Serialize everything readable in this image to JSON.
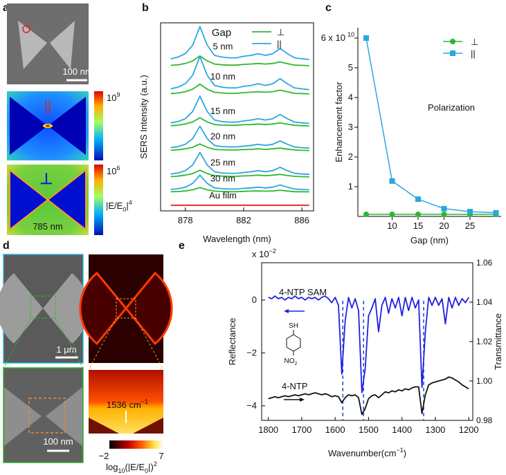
{
  "panel_a": {
    "label": "a",
    "scale_bar": "100 nm",
    "map1_symbol": "||",
    "map2_symbol": "⊥",
    "cbar1_base": "10",
    "cbar1_exp": "9",
    "cbar2_base": "10",
    "cbar2_exp": "6",
    "field": {
      "a": "|E/E",
      "b": "0",
      "c": "|",
      "d": "4"
    },
    "wavelength": "785 nm"
  },
  "panel_d": {
    "label": "d",
    "scale_bar_1": "1 μm",
    "scale_bar_2": "100 nm",
    "raman": {
      "text": "1536 cm",
      "sup": "−1"
    },
    "cbar_min": "−2",
    "cbar_max": "7",
    "cbar_label": {
      "a": "log",
      "b": "10",
      "c": "(|E/E",
      "d": "0",
      "e": "|)",
      "f": "2"
    }
  },
  "chart_data": [
    {
      "type": "line",
      "label": "b",
      "xlabel": "Wavelength (nm)",
      "ylabel": "SERS Intensity (a.u.)",
      "x": [
        877,
        877.5,
        878,
        878.5,
        879,
        879.5,
        880,
        880.5,
        881,
        881.5,
        882,
        882.5,
        883,
        883.5,
        884,
        884.5,
        885,
        885.5,
        886,
        886.5
      ],
      "xlim": [
        876.3,
        886.8
      ],
      "xticks": [
        878,
        882,
        886
      ],
      "ylim": [
        0,
        100
      ],
      "legend_title": "Gap",
      "legend": [
        {
          "name": "⊥",
          "color": "#2db82d"
        },
        {
          "name": "||",
          "color": "#2aa6e0"
        }
      ],
      "series": [
        {
          "color": "#2db82d",
          "values": [
            77.4,
            77.7,
            78.4,
            79.7,
            82.4,
            79.7,
            78.1,
            77.7,
            77.5,
            77.5,
            77.9,
            78.1,
            78.4,
            78.1,
            78.4,
            79.2,
            78.3,
            77.5,
            77.4,
            77.2
          ]
        },
        {
          "label": "5 nm",
          "color": "#2aa6e0",
          "values": [
            80.9,
            81.8,
            83.6,
            88.1,
            98,
            88.1,
            82.7,
            81.8,
            81.4,
            81.4,
            82.2,
            82.7,
            83.6,
            82.7,
            83.6,
            86.3,
            83.6,
            81.4,
            80.9,
            80.5
          ]
        },
        {
          "color": "#2db82d",
          "values": [
            62.4,
            62.7,
            63.4,
            64.7,
            67.4,
            64.7,
            63.1,
            62.7,
            62.5,
            62.5,
            62.9,
            63.1,
            63.4,
            63.1,
            63.4,
            64.2,
            63.3,
            62.5,
            62.4,
            62.2
          ]
        },
        {
          "label": "10 nm",
          "color": "#2aa6e0",
          "values": [
            64.9,
            65.8,
            67.6,
            72.1,
            82,
            72.1,
            66.7,
            65.8,
            65.4,
            65.4,
            66.2,
            66.7,
            67.6,
            66.7,
            67.6,
            70.3,
            67.6,
            65.4,
            64.9,
            64.5
          ]
        },
        {
          "color": "#2db82d",
          "values": [
            45.3,
            45.6,
            46.2,
            47.3,
            49.5,
            47.3,
            45.9,
            45.6,
            45.5,
            45.5,
            45.8,
            45.9,
            46.2,
            45.9,
            46.2,
            46.8,
            46.1,
            45.5,
            45.3,
            45.2
          ]
        },
        {
          "label": "15 nm",
          "color": "#2aa6e0",
          "values": [
            46.8,
            47.5,
            49,
            52.8,
            61,
            52.8,
            48.3,
            47.5,
            47.2,
            47.2,
            47.8,
            48.3,
            49,
            48.3,
            49,
            51.3,
            49,
            47.2,
            46.8,
            46.5
          ]
        },
        {
          "color": "#2db82d",
          "values": [
            32.2,
            32.5,
            33,
            33.8,
            35.6,
            33.8,
            32.7,
            32.5,
            32.4,
            32.4,
            32.6,
            32.7,
            33,
            32.7,
            33,
            33.4,
            32.8,
            32.4,
            32.2,
            32.1
          ]
        },
        {
          "label": "20 nm",
          "color": "#2aa6e0",
          "values": [
            33.6,
            34.2,
            35.4,
            38.4,
            45,
            38.4,
            34.8,
            34.2,
            34,
            34,
            34.4,
            34.8,
            35.4,
            34.8,
            35.4,
            37.2,
            35.4,
            34,
            33.6,
            33.4
          ]
        },
        {
          "color": "#2db82d",
          "values": [
            18.2,
            18.5,
            19,
            19.8,
            21.6,
            19.8,
            18.7,
            18.5,
            18.4,
            18.4,
            18.6,
            18.7,
            19,
            18.7,
            19,
            19.4,
            18.8,
            18.4,
            18.2,
            18.1
          ]
        },
        {
          "label": "25 nm",
          "color": "#2aa6e0",
          "values": [
            19.6,
            20.2,
            21.4,
            24.4,
            31,
            24.4,
            20.8,
            20.2,
            20,
            20,
            20.4,
            20.8,
            21.4,
            20.8,
            21.4,
            23.2,
            21.4,
            20,
            19.6,
            19.4
          ]
        },
        {
          "color": "#2db82d",
          "values": [
            10.2,
            10.3,
            10.6,
            11.2,
            12.4,
            11.2,
            10.5,
            10.3,
            10.2,
            10.2,
            10.4,
            10.5,
            10.6,
            10.5,
            10.6,
            11,
            10.6,
            10.2,
            10.2,
            10.1
          ]
        },
        {
          "label": "30 nm",
          "color": "#2aa6e0",
          "values": [
            11.4,
            11.8,
            12.6,
            14.6,
            19,
            14.6,
            12.2,
            11.8,
            11.6,
            11.6,
            12,
            12.2,
            12.6,
            12.2,
            12.6,
            13.8,
            12.6,
            11.6,
            11.4,
            11.2
          ]
        },
        {
          "label": "Au film",
          "color": "#e0201c",
          "values": [
            3,
            3,
            3,
            3,
            3,
            3,
            3,
            3,
            3,
            3,
            3,
            3,
            3,
            3,
            3,
            3,
            3,
            3,
            3,
            3
          ]
        }
      ]
    },
    {
      "type": "line",
      "label": "c",
      "xlabel": "Gap (nm)",
      "ylabel": "Enhancement factor",
      "annotation": "Polarization",
      "x": [
        5,
        10,
        15,
        20,
        25,
        30
      ],
      "xlim": [
        3.4,
        31
      ],
      "xticks": [
        10,
        15,
        20,
        25
      ],
      "ylim": [
        0,
        6.35
      ],
      "yticks": [
        1,
        2,
        3,
        4,
        5,
        {
          "value": 6,
          "label": "6 x 10"
        }
      ],
      "ytick_exponent": "10",
      "series": [
        {
          "name": "⊥",
          "color": "#2db82d",
          "marker": "circle",
          "values": [
            0.07,
            0.07,
            0.07,
            0.07,
            0.07,
            0.07
          ]
        },
        {
          "name": "||",
          "color": "#2aa6e0",
          "marker": "square",
          "values": [
            6.0,
            1.19,
            0.58,
            0.26,
            0.16,
            0.12
          ]
        }
      ]
    },
    {
      "type": "line",
      "label": "e",
      "xlabel": {
        "text": "Wavenumber(cm",
        "sup": "−1",
        "end": ")"
      },
      "ylabel": "Reflectance",
      "y2label": "Transmittance",
      "ymultiplier": "x 10",
      "ymultiplier_exp": "−2",
      "x": [
        1800,
        1790,
        1780,
        1770,
        1760,
        1750,
        1740,
        1730,
        1720,
        1710,
        1700,
        1690,
        1680,
        1670,
        1660,
        1650,
        1640,
        1630,
        1620,
        1610,
        1600,
        1590,
        1580,
        1570,
        1560,
        1550,
        1540,
        1530,
        1520,
        1510,
        1500,
        1490,
        1480,
        1470,
        1460,
        1450,
        1440,
        1430,
        1420,
        1410,
        1400,
        1390,
        1380,
        1370,
        1360,
        1350,
        1340,
        1330,
        1320,
        1310,
        1300,
        1290,
        1280,
        1270,
        1260,
        1250,
        1240,
        1230,
        1220,
        1210,
        1200
      ],
      "xlim": [
        1820,
        1188
      ],
      "xticks": [
        1800,
        1700,
        1600,
        1500,
        1400,
        1300,
        1200
      ],
      "ylim": [
        -4.55,
        1.41
      ],
      "yticks": [
        0,
        {
          "value": -2,
          "label": "−2"
        },
        {
          "value": -4,
          "label": "−4"
        }
      ],
      "y2lim": [
        0.98,
        1.06
      ],
      "y2ticks": [
        0.98,
        {
          "value": 1,
          "label": "1.00"
        },
        1.02,
        1.04,
        1.06
      ],
      "vlines": [
        1577,
        1515,
        1335
      ],
      "vline_color": "#1f3fe0",
      "molecule": {
        "top": "SH",
        "bottom": "NO",
        "bottom_sub": "2"
      },
      "series": [
        {
          "name": "4-NTP SAM",
          "color": "#1f1fe0",
          "values": [
            0.1,
            0.05,
            0.15,
            0.05,
            0.1,
            0,
            0.1,
            0.05,
            0.15,
            0.05,
            0.1,
            0,
            0.1,
            0.05,
            0.1,
            0,
            0.1,
            0.15,
            0.05,
            -0.1,
            0.1,
            -0.2,
            -2.8,
            -0.8,
            0.1,
            -0.3,
            0.05,
            -0.4,
            -3.5,
            -2.6,
            -0.6,
            -0.3,
            0.05,
            -1.2,
            -0.2,
            0.1,
            -0.5,
            0.05,
            -0.3,
            0.1,
            -0.6,
            0.1,
            -0.4,
            0.1,
            -0.3,
            0,
            -3.3,
            -1.2,
            0.1,
            -0.2,
            0.1,
            -0.2,
            0.05,
            -0.9,
            0.1,
            -0.3,
            0.1,
            -0.2,
            0.05,
            -0.1,
            0.1
          ]
        },
        {
          "name": "4-NTP",
          "color": "#111111",
          "axis": "y2",
          "values": [
            0.991,
            0.9915,
            0.992,
            0.9915,
            0.992,
            0.9925,
            0.992,
            0.9925,
            0.993,
            0.9925,
            0.993,
            0.9935,
            0.993,
            0.9935,
            0.994,
            0.9935,
            0.993,
            0.9935,
            0.993,
            0.992,
            0.9925,
            0.992,
            0.989,
            0.9915,
            0.993,
            0.9925,
            0.993,
            0.9915,
            0.983,
            0.986,
            0.991,
            0.9925,
            0.993,
            0.9915,
            0.993,
            0.9945,
            0.994,
            0.995,
            0.9945,
            0.9955,
            0.995,
            0.996,
            0.9955,
            0.9965,
            0.997,
            0.997,
            0.9835,
            0.993,
            0.998,
            0.999,
            0.9995,
            1.0,
            1.0005,
            1.001,
            1.002,
            1.0015,
            1.0005,
            0.9995,
            0.998,
            0.997,
            0.996
          ]
        }
      ]
    }
  ]
}
